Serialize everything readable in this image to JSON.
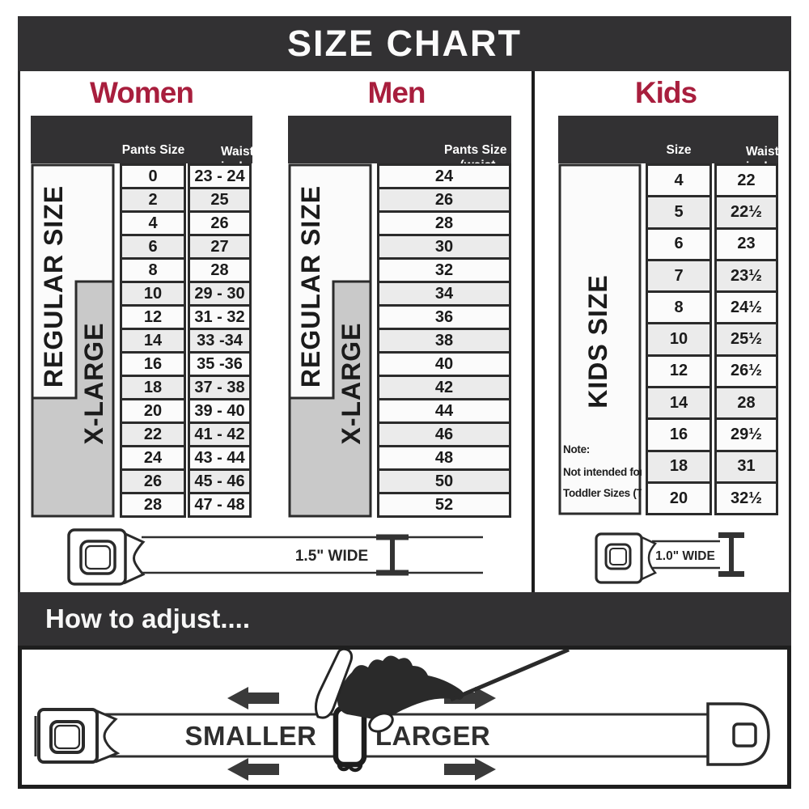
{
  "banner": {
    "title": "SIZE CHART"
  },
  "women": {
    "title": "Women",
    "side_regular": "REGULAR SIZE",
    "side_xlarge": "X-LARGE",
    "header": {
      "pants": "Pants Size",
      "waist1": "Waist",
      "waist2": "inches"
    },
    "rows": [
      {
        "size": "0",
        "waist": "23 - 24"
      },
      {
        "size": "2",
        "waist": "25"
      },
      {
        "size": "4",
        "waist": "26"
      },
      {
        "size": "6",
        "waist": "27"
      },
      {
        "size": "8",
        "waist": "28"
      },
      {
        "size": "10",
        "waist": "29 - 30"
      },
      {
        "size": "12",
        "waist": "31 - 32"
      },
      {
        "size": "14",
        "waist": "33 -34"
      },
      {
        "size": "16",
        "waist": "35 -36"
      },
      {
        "size": "18",
        "waist": "37 - 38"
      },
      {
        "size": "20",
        "waist": "39 - 40"
      },
      {
        "size": "22",
        "waist": "41 - 42"
      },
      {
        "size": "24",
        "waist": "43 - 44"
      },
      {
        "size": "26",
        "waist": "45 - 46"
      },
      {
        "size": "28",
        "waist": "47 - 48"
      }
    ]
  },
  "men": {
    "title": "Men",
    "side_regular": "REGULAR SIZE",
    "side_xlarge": "X-LARGE",
    "header": {
      "line1": "Pants Size",
      "line2": "(waist inches)"
    },
    "rows": [
      "24",
      "26",
      "28",
      "30",
      "32",
      "34",
      "36",
      "38",
      "40",
      "42",
      "44",
      "46",
      "48",
      "50",
      "52"
    ]
  },
  "kids": {
    "title": "Kids",
    "side_label": "KIDS SIZE",
    "header": {
      "size": "Size",
      "waist1": "Waist",
      "waist2": "inches"
    },
    "rows": [
      {
        "size": "4",
        "waist": "22"
      },
      {
        "size": "5",
        "waist": "22½"
      },
      {
        "size": "6",
        "waist": "23"
      },
      {
        "size": "7",
        "waist": "23½"
      },
      {
        "size": "8",
        "waist": "24½"
      },
      {
        "size": "10",
        "waist": "25½"
      },
      {
        "size": "12",
        "waist": "26½"
      },
      {
        "size": "14",
        "waist": "28"
      },
      {
        "size": "16",
        "waist": "29½"
      },
      {
        "size": "18",
        "waist": "31"
      },
      {
        "size": "20",
        "waist": "32½"
      }
    ],
    "note": {
      "line1": "Note:",
      "line2": "Not intended for",
      "line3": "Toddler Sizes (T)"
    }
  },
  "belts": {
    "adult_label": "1.5\" WIDE",
    "kids_label": "1.0\" WIDE"
  },
  "adjust": {
    "title": "How to adjust....",
    "smaller": "SMALLER",
    "larger": "LARGER"
  },
  "colors": {
    "dark_band": "#323133",
    "accent_red": "#a81e3d",
    "row_light": "#fbfbfb",
    "row_alt": "#ebebeb",
    "label_gray": "#c9c9c9",
    "table_border": "#2b2b2b"
  }
}
